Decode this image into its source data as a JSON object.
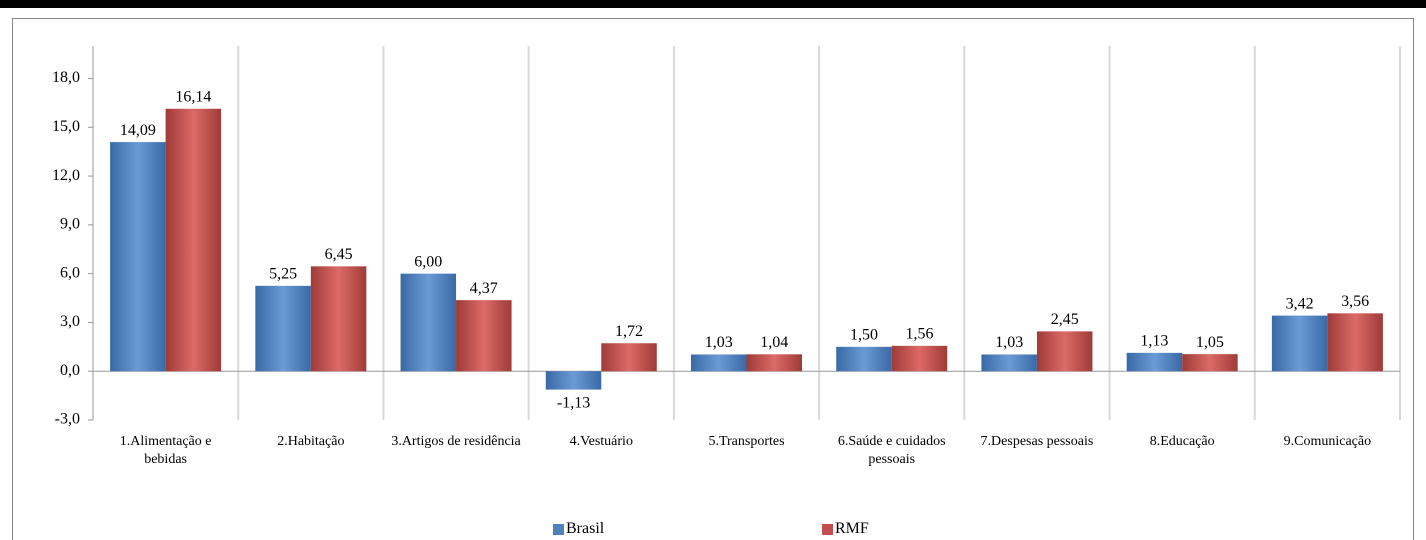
{
  "chart_data": {
    "type": "bar",
    "categories": [
      "1.Alimentação e bebidas",
      "2.Habitação",
      "3.Artigos de residência",
      "4.Vestuário",
      "5.Transportes",
      "6.Saúde e cuidados pessoais",
      "7.Despesas pessoais",
      "8.Educação",
      "9.Comunicação"
    ],
    "series": [
      {
        "name": "Brasil",
        "color": "#4f81bd",
        "values": [
          14.09,
          5.25,
          6.0,
          -1.13,
          1.03,
          1.5,
          1.03,
          1.13,
          3.42
        ],
        "value_labels": [
          "14,09",
          "5,25",
          "6,00",
          "-1,13",
          "1,03",
          "1,50",
          "1,03",
          "1,13",
          "3,42"
        ]
      },
      {
        "name": "RMF",
        "color": "#c0504d",
        "values": [
          16.14,
          6.45,
          4.37,
          1.72,
          1.04,
          1.56,
          2.45,
          1.05,
          3.56
        ],
        "value_labels": [
          "16,14",
          "6,45",
          "4,37",
          "1,72",
          "1,04",
          "1,56",
          "2,45",
          "1,05",
          "3,56"
        ]
      }
    ],
    "ylim": [
      -3,
      20
    ],
    "yticks": [
      {
        "value": -3,
        "label": "-3,0"
      },
      {
        "value": 0,
        "label": "0,0"
      },
      {
        "value": 3,
        "label": "3,0"
      },
      {
        "value": 6,
        "label": "6,0"
      },
      {
        "value": 9,
        "label": "9,0"
      },
      {
        "value": 12,
        "label": "12,0"
      },
      {
        "value": 15,
        "label": "15,0"
      },
      {
        "value": 18,
        "label": "18,0"
      }
    ],
    "negative_label_color": "#ff0000",
    "legend": "bottom"
  }
}
